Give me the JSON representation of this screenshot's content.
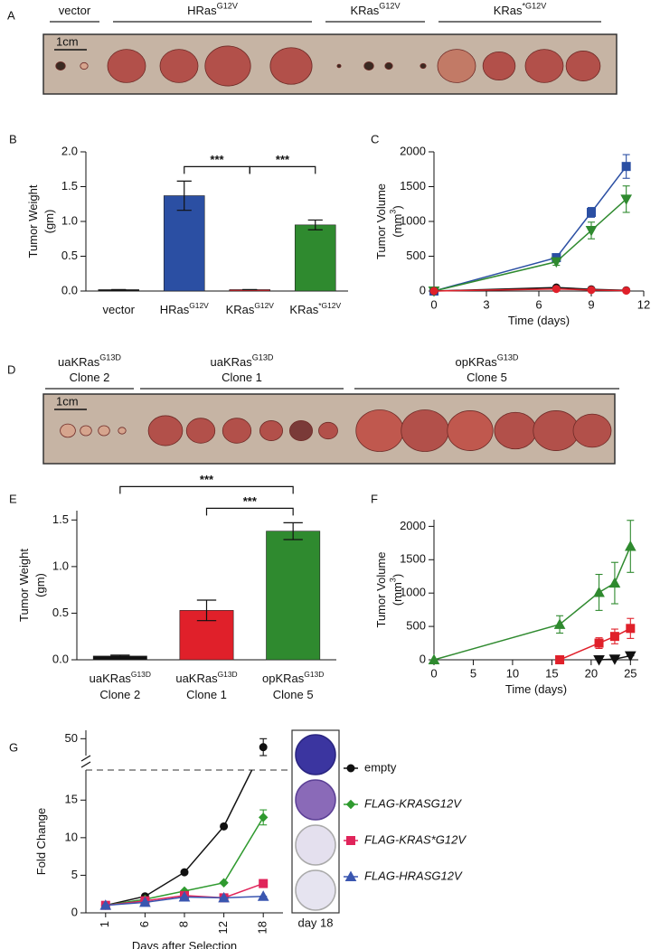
{
  "photo_a": {
    "panel": "A",
    "scale_bar": "1cm",
    "groups": [
      [
        [
          "vector"
        ]
      ],
      [
        [
          "HRas",
          {
            "sup": "G12V"
          }
        ]
      ],
      [
        [
          "KRas",
          {
            "sup": "G12V"
          }
        ]
      ],
      [
        [
          "KRas",
          {
            "sup": "*G12V"
          }
        ]
      ]
    ]
  },
  "photo_d": {
    "panel": "D",
    "scale_bar": "1cm",
    "groups": [
      [
        [
          "uaKRas",
          {
            "sup": "G13D"
          }
        ],
        [
          "Clone 2"
        ]
      ],
      [
        [
          "uaKRas",
          {
            "sup": "G13D"
          }
        ],
        [
          "Clone 1"
        ]
      ],
      [
        [
          "opKRas",
          {
            "sup": "G13D"
          }
        ],
        [
          "Clone 5"
        ]
      ]
    ]
  },
  "chart_data": [
    {
      "panel": "B",
      "type": "bar",
      "ylabel": [
        [
          "Tumor Weight"
        ],
        [
          "(gm)"
        ]
      ],
      "categories": [
        [
          [
            "vector"
          ]
        ],
        [
          [
            "HRas",
            {
              "sup": "G12V"
            }
          ]
        ],
        [
          [
            "KRas",
            {
              "sup": "G12V"
            }
          ]
        ],
        [
          [
            "KRas",
            {
              "sup": "*G12V"
            }
          ]
        ]
      ],
      "values": [
        0.02,
        1.37,
        0.02,
        0.95
      ],
      "errors": [
        0,
        0.21,
        0,
        0.07
      ],
      "colors": [
        "#111111",
        "#2b4fa3",
        "#e0202a",
        "#2f8a2f"
      ],
      "ylim": [
        0,
        2.0
      ],
      "yticks": [
        {
          "value": 0,
          "label": "0.0"
        },
        0.5,
        {
          "value": 1,
          "label": "1.0"
        },
        1.5,
        {
          "value": 2,
          "label": "2.0"
        }
      ],
      "annotations": [
        {
          "text": "***",
          "categories": [
            1,
            2
          ]
        },
        {
          "text": "***",
          "categories": [
            2,
            3
          ]
        }
      ]
    },
    {
      "panel": "C",
      "type": "line",
      "xlabel": [
        [
          "Time (days)"
        ]
      ],
      "ylabel": [
        [
          "Tumor Volume"
        ],
        [
          "(mm",
          {
            "sup": "3"
          },
          ")"
        ]
      ],
      "xlim": [
        0,
        12
      ],
      "xticks": [
        0,
        3,
        6,
        9,
        12
      ],
      "ylim": [
        0,
        2000
      ],
      "yticks": [
        0,
        500,
        1000,
        1500,
        2000
      ],
      "series": [
        {
          "color": "#2b4fa3",
          "marker": "square",
          "x": [
            0,
            7,
            9,
            11
          ],
          "values": [
            0,
            480,
            1130,
            1790
          ],
          "errors": [
            0,
            40,
            70,
            170
          ]
        },
        {
          "color": "#2f8a2f",
          "marker": "triangle-down",
          "x": [
            0,
            7,
            9,
            11
          ],
          "values": [
            0,
            420,
            870,
            1320
          ],
          "errors": [
            0,
            50,
            120,
            190
          ]
        },
        {
          "color": "#111111",
          "marker": "circle",
          "x": [
            0,
            7,
            9,
            11
          ],
          "values": [
            0,
            50,
            25,
            10
          ],
          "errors": [
            0,
            10,
            8,
            5
          ]
        },
        {
          "color": "#e0202a",
          "marker": "circle",
          "x": [
            0,
            7,
            9,
            11
          ],
          "values": [
            0,
            30,
            15,
            5
          ],
          "errors": [
            0,
            10,
            5,
            3
          ]
        }
      ]
    },
    {
      "panel": "E",
      "type": "bar",
      "ylabel": [
        [
          "Tumor Weight"
        ],
        [
          "(gm)"
        ]
      ],
      "categories": [
        [
          [
            "uaKRas",
            {
              "sup": "G13D"
            }
          ],
          [
            "Clone 2"
          ]
        ],
        [
          [
            "uaKRas",
            {
              "sup": "G13D"
            }
          ],
          [
            "Clone 1"
          ]
        ],
        [
          [
            "opKRas",
            {
              "sup": "G13D"
            }
          ],
          [
            "Clone 5"
          ]
        ]
      ],
      "values": [
        0.04,
        0.53,
        1.38
      ],
      "errors": [
        0.01,
        0.11,
        0.09
      ],
      "colors": [
        "#111111",
        "#e0202a",
        "#2f8a2f"
      ],
      "ylim": [
        0,
        1.6
      ],
      "yticks": [
        {
          "value": 0,
          "label": "0.0"
        },
        0.5,
        {
          "value": 1,
          "label": "1.0"
        },
        1.5
      ],
      "annotations": [
        {
          "text": "***",
          "categories": [
            0,
            2
          ]
        },
        {
          "text": "***",
          "categories": [
            1,
            2
          ]
        }
      ]
    },
    {
      "panel": "F",
      "type": "line",
      "xlabel": [
        [
          "Time (days)"
        ]
      ],
      "ylabel": [
        [
          "Tumor Volume"
        ],
        [
          "(mm",
          {
            "sup": "3"
          },
          ")"
        ]
      ],
      "xlim": [
        0,
        26
      ],
      "xticks": [
        0,
        5,
        10,
        15,
        20,
        25
      ],
      "ylim": [
        0,
        2100
      ],
      "yticks": [
        0,
        500,
        1000,
        1500,
        2000
      ],
      "series": [
        {
          "color": "#2f8a2f",
          "marker": "triangle-up",
          "x": [
            0,
            16,
            21,
            23,
            25
          ],
          "values": [
            0,
            530,
            1010,
            1150,
            1700
          ],
          "errors": [
            0,
            130,
            270,
            310,
            390
          ]
        },
        {
          "color": "#e0202a",
          "marker": "square",
          "x": [
            16,
            21,
            23,
            25
          ],
          "values": [
            0,
            250,
            350,
            470
          ],
          "errors": [
            0,
            80,
            110,
            150
          ]
        },
        {
          "color": "#111111",
          "marker": "triangle-down",
          "x": [
            21,
            23,
            25
          ],
          "values": [
            0,
            10,
            60
          ],
          "errors": [
            0,
            0,
            0
          ]
        }
      ]
    },
    {
      "panel": "G",
      "type": "line",
      "xlabel": [
        [
          "Days after Selection"
        ]
      ],
      "ylabel": [
        [
          "Fold Change"
        ]
      ],
      "categories": [
        "1",
        "6",
        "8",
        "12",
        "18"
      ],
      "ylim": [
        0,
        19
      ],
      "yticks": [
        0,
        5,
        10,
        15
      ],
      "upper_ylim": [
        40,
        55
      ],
      "upper_yticks": [
        50
      ],
      "axis_break": true,
      "plate_label": "day 18",
      "series": [
        {
          "name": "empty",
          "italic": false,
          "color": "#111111",
          "marker": "circle",
          "values": [
            1,
            2.2,
            5.4,
            11.5,
            45
          ],
          "errors": [
            0,
            0,
            0,
            0,
            5
          ]
        },
        {
          "name": "FLAG-KRASG12V",
          "italic": true,
          "color": "#2f9a2f",
          "marker": "diamond",
          "values": [
            1,
            1.8,
            2.9,
            4,
            12.7
          ],
          "errors": [
            0,
            0,
            0,
            0,
            1
          ]
        },
        {
          "name": "FLAG-KRAS*G12V",
          "italic": true,
          "color": "#e0245a",
          "marker": "square",
          "values": [
            1,
            1.6,
            2.3,
            2.0,
            3.9
          ],
          "errors": [
            0,
            0,
            0,
            0,
            0
          ]
        },
        {
          "name": "FLAG-HRASG12V",
          "italic": true,
          "color": "#3a56b0",
          "marker": "triangle-up",
          "values": [
            1,
            1.4,
            2.1,
            2.0,
            2.2
          ],
          "errors": [
            0,
            0,
            0,
            0,
            0
          ]
        }
      ]
    }
  ]
}
